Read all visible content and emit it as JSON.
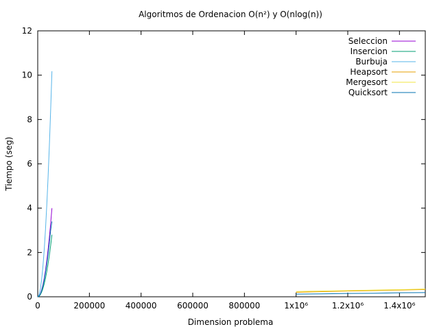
{
  "chart_data": {
    "type": "line",
    "title": "Algoritmos de Ordenacion O(n²) y O(nlog(n))",
    "xlabel": "Dimension problema",
    "ylabel": "Tiempo (seg)",
    "xlim": [
      0,
      1500000
    ],
    "ylim": [
      0,
      12
    ],
    "x_ticks": [
      {
        "value": 0,
        "label": "0"
      },
      {
        "value": 200000,
        "label": "200000"
      },
      {
        "value": 400000,
        "label": "400000"
      },
      {
        "value": 600000,
        "label": "600000"
      },
      {
        "value": 800000,
        "label": "800000"
      },
      {
        "value": 1000000,
        "label": "1x10⁶"
      },
      {
        "value": 1200000,
        "label": "1.2x10⁶"
      },
      {
        "value": 1400000,
        "label": "1.4x10⁶"
      }
    ],
    "y_ticks": [
      {
        "value": 0,
        "label": "0"
      },
      {
        "value": 2,
        "label": "2"
      },
      {
        "value": 4,
        "label": "4"
      },
      {
        "value": 6,
        "label": "6"
      },
      {
        "value": 8,
        "label": "8"
      },
      {
        "value": 10,
        "label": "10"
      },
      {
        "value": 12,
        "label": "12"
      }
    ],
    "grid": false,
    "legend_position": "top-right",
    "series": [
      {
        "name": "Seleccion",
        "color": "#9400d3",
        "x": [
          0,
          5000,
          10000,
          15000,
          20000,
          25000,
          30000,
          35000,
          40000,
          45000,
          50000,
          55000
        ],
        "y": [
          0,
          0.03,
          0.13,
          0.3,
          0.53,
          0.83,
          1.19,
          1.62,
          2.12,
          2.68,
          3.31,
          4.0
        ]
      },
      {
        "name": "Insercion",
        "color": "#009e73",
        "x": [
          0,
          5000,
          10000,
          15000,
          20000,
          25000,
          30000,
          35000,
          40000,
          45000,
          50000,
          55000
        ],
        "y": [
          0,
          0.02,
          0.09,
          0.21,
          0.37,
          0.58,
          0.83,
          1.13,
          1.48,
          1.87,
          2.31,
          2.8
        ]
      },
      {
        "name": "Burbuja",
        "color": "#56b4e9",
        "x": [
          0,
          5000,
          10000,
          15000,
          20000,
          25000,
          30000,
          35000,
          40000,
          45000,
          50000,
          55000
        ],
        "y": [
          0,
          0.08,
          0.34,
          0.76,
          1.35,
          2.1,
          3.03,
          4.12,
          5.38,
          6.81,
          8.41,
          10.18
        ]
      },
      {
        "name": "Heapsort",
        "color": "#e69f00",
        "x": [
          1000000,
          1100000,
          1200000,
          1300000,
          1400000,
          1500000
        ],
        "y": [
          0.2,
          0.23,
          0.26,
          0.28,
          0.3,
          0.33
        ]
      },
      {
        "name": "Mergesort",
        "color": "#f0e442",
        "x": [
          1000000,
          1100000,
          1200000,
          1300000,
          1400000,
          1500000
        ],
        "y": [
          0.24,
          0.26,
          0.28,
          0.3,
          0.32,
          0.35
        ]
      },
      {
        "name": "Quicksort",
        "color": "#0072b2",
        "x": [
          0,
          5000,
          10000,
          15000,
          20000,
          25000,
          30000,
          35000,
          40000,
          45000,
          50000,
          55000,
          1000000,
          1100000,
          1200000,
          1300000,
          1400000,
          1500000
        ],
        "y": [
          0,
          0.03,
          0.12,
          0.27,
          0.48,
          0.75,
          1.08,
          1.46,
          1.91,
          2.42,
          2.99,
          3.4,
          0.12,
          0.13,
          0.15,
          0.16,
          0.18,
          0.19
        ]
      }
    ]
  }
}
